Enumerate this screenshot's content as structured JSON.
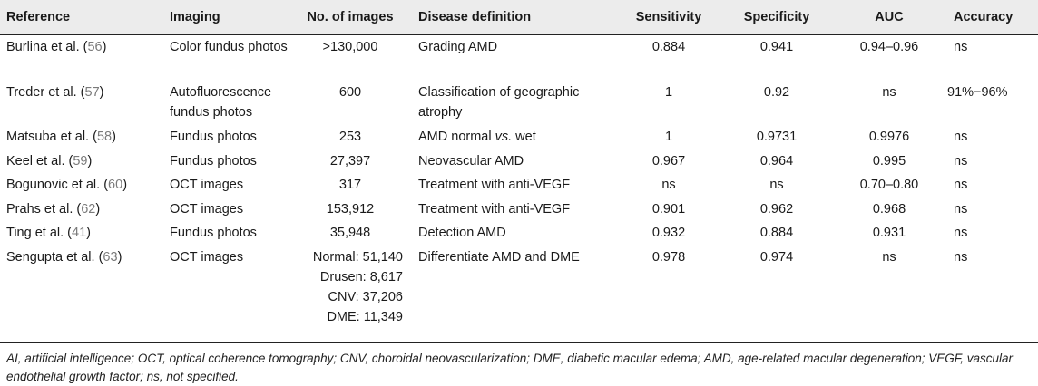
{
  "headers": [
    "Reference",
    "Imaging",
    "No. of images",
    "Disease definition",
    "Sensitivity",
    "Specificity",
    "AUC",
    "Accuracy"
  ],
  "rows": [
    {
      "ref_name": "Burlina et al. (",
      "ref_num": "56",
      "imaging": "Color fundus photos",
      "images": ">130,000",
      "disease": "Grading AMD",
      "sensitivity": "0.884",
      "specificity": "0.941",
      "auc": "0.94–0.96",
      "accuracy": "ns"
    },
    {
      "ref_name": "Treder et al. (",
      "ref_num": "57",
      "imaging": "Autofluorescence fundus photos",
      "images": "600",
      "disease": "Classification of geographic atrophy",
      "sensitivity": "1",
      "specificity": "0.92",
      "auc": "ns",
      "accuracy": "91%−96%"
    },
    {
      "ref_name": "Matsuba et al. (",
      "ref_num": "58",
      "imaging": "Fundus photos",
      "images": "253",
      "disease_a": "AMD normal ",
      "disease_i": "vs.",
      "disease_b": " wet",
      "sensitivity": "1",
      "specificity": "0.9731",
      "auc": "0.9976",
      "accuracy": "ns"
    },
    {
      "ref_name": "Keel et al. (",
      "ref_num": "59",
      "imaging": "Fundus photos",
      "images": "27,397",
      "disease": "Neovascular AMD",
      "sensitivity": "0.967",
      "specificity": "0.964",
      "auc": "0.995",
      "accuracy": "ns"
    },
    {
      "ref_name": "Bogunovic et al. (",
      "ref_num": "60",
      "imaging": "OCT images",
      "images": "317",
      "disease": "Treatment with anti-VEGF",
      "sensitivity": "ns",
      "specificity": "ns",
      "auc": "0.70–0.80",
      "accuracy": "ns"
    },
    {
      "ref_name": "Prahs et al. (",
      "ref_num": "62",
      "imaging": "OCT images",
      "images": "153,912",
      "disease": "Treatment with anti-VEGF",
      "sensitivity": "0.901",
      "specificity": "0.962",
      "auc": "0.968",
      "accuracy": "ns"
    },
    {
      "ref_name": "Ting et al. (",
      "ref_num": "41",
      "imaging": "Fundus photos",
      "images": "35,948",
      "disease": "Detection AMD",
      "sensitivity": "0.932",
      "specificity": "0.884",
      "auc": "0.931",
      "accuracy": "ns"
    },
    {
      "ref_name": "Sengupta et al. (",
      "ref_num": "63",
      "imaging": "OCT images",
      "images_lines": [
        "Normal: 51,140",
        "Drusen: 8,617",
        "CNV: 37,206",
        "DME: 11,349"
      ],
      "disease": "Differentiate AMD and DME",
      "sensitivity": "0.978",
      "specificity": "0.974",
      "auc": "ns",
      "accuracy": "ns"
    }
  ],
  "footnote": "AI, artificial intelligence; OCT, optical coherence tomography; CNV, choroidal neovascularization; DME, diabetic macular edema; AMD, age-related macular degeneration; VEGF, vascular endothelial growth factor; ns, not specified."
}
